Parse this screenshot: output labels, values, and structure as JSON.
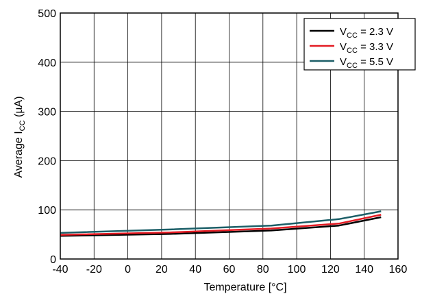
{
  "chart_data": {
    "type": "line",
    "xlabel": "Temperature [°C]",
    "ylabel_prefix": "Average I",
    "ylabel_sub": "CC",
    "ylabel_suffix": " (µA)",
    "xlim": [
      -40,
      160
    ],
    "ylim": [
      0,
      500
    ],
    "xticks": [
      -40,
      -20,
      0,
      20,
      40,
      60,
      80,
      100,
      120,
      140,
      160
    ],
    "yticks": [
      0,
      100,
      200,
      300,
      400,
      500
    ],
    "grid": true,
    "legend_position": "top-right",
    "series": [
      {
        "name": "VCC = 2.3 V",
        "label_main": "V",
        "label_sub": "CC",
        "label_rest": " = 2.3 V",
        "color": "#000000",
        "x": [
          -40,
          25,
          85,
          125,
          150
        ],
        "y": [
          47,
          51,
          58,
          68,
          85
        ]
      },
      {
        "name": "VCC = 3.3 V",
        "label_main": "V",
        "label_sub": "CC",
        "label_rest": " = 3.3 V",
        "color": "#e31b23",
        "x": [
          -40,
          25,
          85,
          125,
          150
        ],
        "y": [
          49,
          54,
          62,
          72,
          90
        ]
      },
      {
        "name": "VCC = 5.5 V",
        "label_main": "V",
        "label_sub": "CC",
        "label_rest": " = 5.5 V",
        "color": "#1b5e67",
        "x": [
          -40,
          25,
          85,
          125,
          150
        ],
        "y": [
          53,
          60,
          68,
          81,
          97
        ]
      }
    ]
  }
}
